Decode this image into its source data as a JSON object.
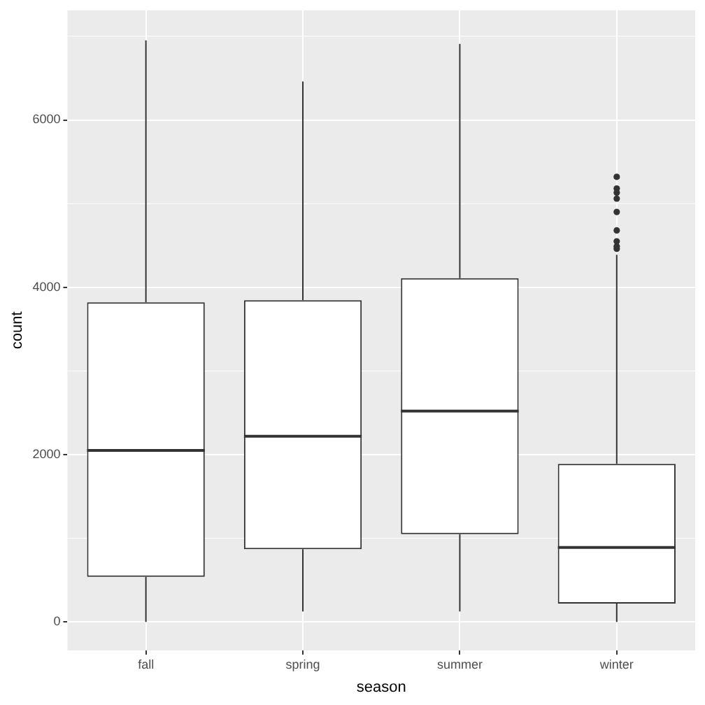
{
  "chart_data": {
    "type": "box",
    "xlabel": "season",
    "ylabel": "count",
    "categories": [
      "fall",
      "spring",
      "summer",
      "winter"
    ],
    "boxes": [
      {
        "low": 0,
        "q1": 540,
        "median": 2050,
        "q3": 3820,
        "high": 6950
      },
      {
        "low": 125,
        "q1": 870,
        "median": 2220,
        "q3": 3845,
        "high": 6460
      },
      {
        "low": 125,
        "q1": 1050,
        "median": 2520,
        "q3": 4110,
        "high": 6910
      },
      {
        "low": 0,
        "q1": 220,
        "median": 890,
        "q3": 1890,
        "high": 4390,
        "outliers": [
          5320,
          5180,
          5130,
          5060,
          4900,
          4680,
          4550,
          4490,
          4460
        ]
      }
    ],
    "ylim": [
      -340,
      7310
    ],
    "yticks": [
      0,
      2000,
      4000,
      6000
    ],
    "grid": true
  }
}
